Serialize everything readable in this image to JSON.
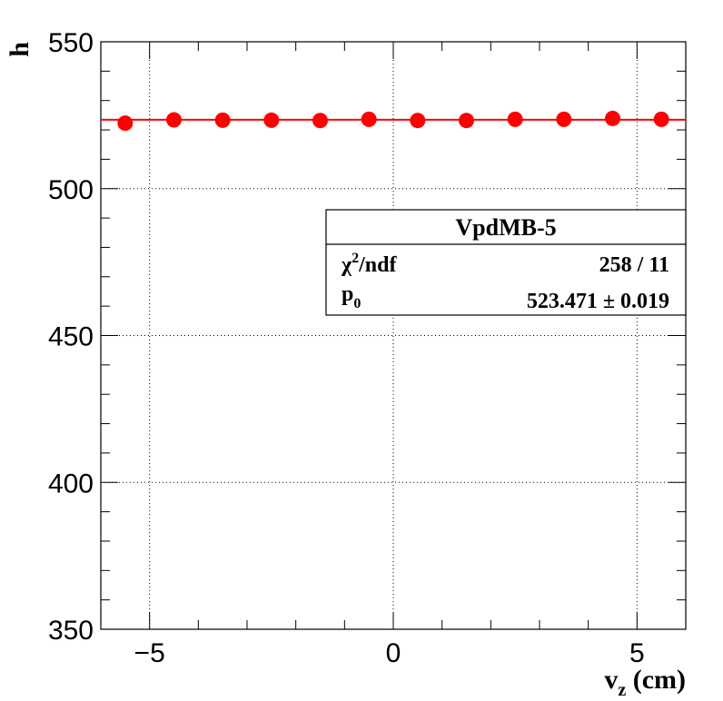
{
  "chart_data": {
    "type": "scatter",
    "xlabel_main": "v",
    "xlabel_sub": "z",
    "xlabel_unit": " (cm)",
    "ylabel": "h",
    "xlim": [
      -6,
      6
    ],
    "ylim": [
      350,
      550
    ],
    "x_ticks": [
      -5,
      0,
      5
    ],
    "x_tick_labels": [
      "−5",
      "0",
      "5"
    ],
    "y_ticks": [
      350,
      400,
      450,
      500,
      550
    ],
    "y_tick_labels": [
      "350",
      "400",
      "450",
      "500",
      "550"
    ],
    "grid": true,
    "points": [
      {
        "x": -5.5,
        "y": 522.3
      },
      {
        "x": -4.5,
        "y": 523.4
      },
      {
        "x": -3.5,
        "y": 523.3
      },
      {
        "x": -2.5,
        "y": 523.3
      },
      {
        "x": -1.5,
        "y": 523.2
      },
      {
        "x": -0.5,
        "y": 523.6
      },
      {
        "x": 0.5,
        "y": 523.2
      },
      {
        "x": 1.5,
        "y": 523.2
      },
      {
        "x": 2.5,
        "y": 523.6
      },
      {
        "x": 3.5,
        "y": 523.6
      },
      {
        "x": 4.5,
        "y": 523.9
      },
      {
        "x": 5.5,
        "y": 523.6
      }
    ],
    "fit_value": 523.471,
    "colors": {
      "points": "#ff0000",
      "fit": "#ff0000",
      "grid": "#000000"
    }
  },
  "stats_box": {
    "title": "VpdMB-5",
    "chi2_label_main": "χ",
    "chi2_label_sup": "2",
    "chi2_label_rest": "/ndf",
    "chi2_value": "258 / 11",
    "p0_label_main": "p",
    "p0_label_sub": "0",
    "p0_value": "523.471",
    "p0_error": "± 0.019",
    "placement": "right"
  }
}
